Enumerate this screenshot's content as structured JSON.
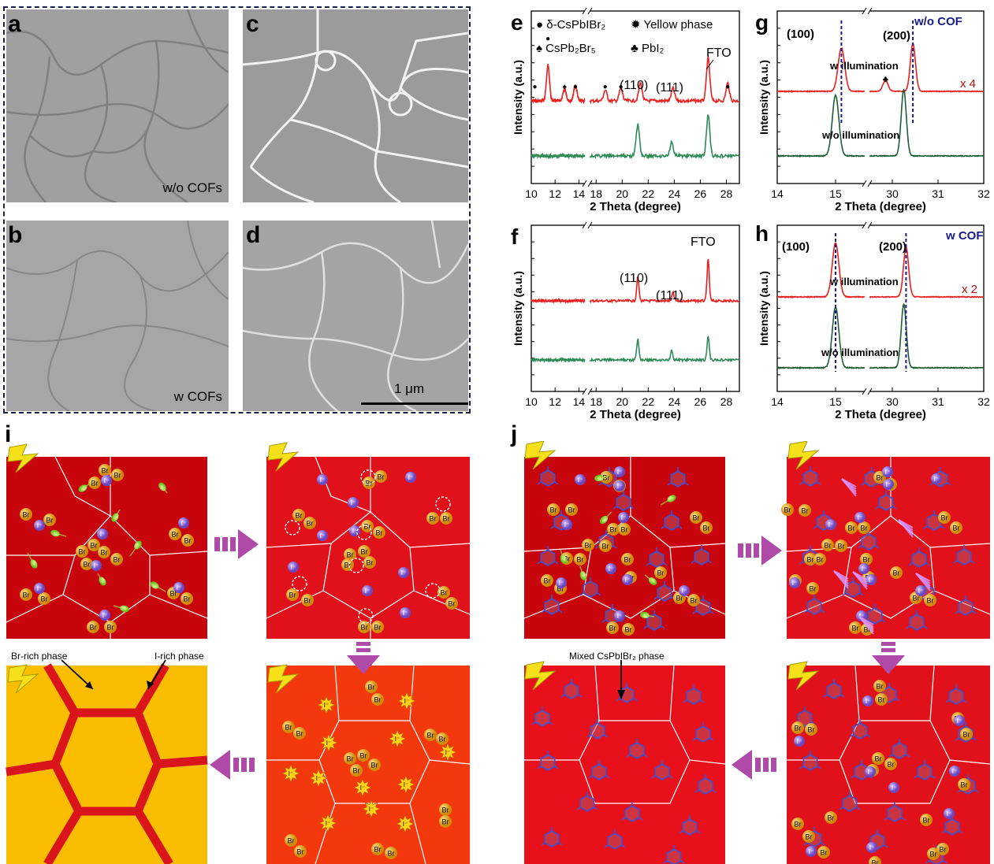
{
  "panels": {
    "a": {
      "letter": "a",
      "label": "w/o COFs"
    },
    "b": {
      "letter": "b",
      "label": "w COFs"
    },
    "c": {
      "letter": "c"
    },
    "d": {
      "letter": "d",
      "scalebar": "1 μm"
    }
  },
  "chart_data": [
    {
      "panel": "e",
      "type": "line",
      "xlabel": "2 Theta (degree)",
      "ylabel": "Intensity (a.u.)",
      "xticks": [
        "10",
        "12",
        "14",
        "18",
        "20",
        "22",
        "24",
        "26",
        "28"
      ],
      "xlim_left": [
        10,
        14.5
      ],
      "xlim_right": [
        17.5,
        29
      ],
      "legend": [
        {
          "symbol": "●",
          "text": "δ-CsPbIBr₂"
        },
        {
          "symbol": "✹",
          "text": "Yellow phase"
        },
        {
          "symbol": "♠",
          "text": "CsPb₂Br₅"
        },
        {
          "symbol": "♣",
          "text": "PbI₂"
        }
      ],
      "annotations": [
        "(110)",
        "(111)",
        "FTO"
      ],
      "series": [
        {
          "color": "#e8201e",
          "peaks": [
            [
              11.4,
              1.0
            ],
            [
              12.8,
              0.35
            ],
            [
              13.7,
              0.45
            ],
            [
              18.7,
              0.3
            ],
            [
              19.9,
              0.35
            ],
            [
              21.4,
              0.5
            ],
            [
              23.9,
              0.35
            ],
            [
              26.6,
              1.2
            ],
            [
              28.1,
              0.5
            ]
          ]
        },
        {
          "color": "#2e8a57",
          "peaks": [
            [
              21.2,
              1.0
            ],
            [
              23.8,
              0.45
            ],
            [
              26.6,
              1.3
            ]
          ]
        }
      ]
    },
    {
      "panel": "f",
      "type": "line",
      "xlabel": "2 Theta (degree)",
      "ylabel": "Intensity (a.u.)",
      "xticks": [
        "10",
        "12",
        "14",
        "18",
        "20",
        "22",
        "24",
        "26",
        "28"
      ],
      "xlim_left": [
        10,
        14.5
      ],
      "xlim_right": [
        17.5,
        29
      ],
      "annotations": [
        "(110)",
        "(111)",
        "FTO"
      ],
      "series": [
        {
          "color": "#e8201e",
          "peaks": [
            [
              21.2,
              0.75
            ],
            [
              23.9,
              0.25
            ],
            [
              26.6,
              1.3
            ]
          ]
        },
        {
          "color": "#2e8a57",
          "peaks": [
            [
              21.2,
              0.75
            ],
            [
              23.8,
              0.35
            ],
            [
              26.6,
              0.85
            ]
          ]
        }
      ]
    },
    {
      "panel": "g",
      "type": "line",
      "xlabel": "2 Theta (degree)",
      "ylabel": "Intensity (a.u.)",
      "xticks": [
        "14",
        "15",
        "30",
        "31",
        "32"
      ],
      "xlim_left": [
        14,
        15.5
      ],
      "xlim_right": [
        29.5,
        32
      ],
      "title": "w/o COF",
      "annotations": [
        "(100)",
        "(200)",
        "w illumination",
        "w/o illumination",
        "x 4"
      ],
      "series": [
        {
          "name": "w illumination",
          "color": "#e8201e",
          "peaks": [
            [
              15.1,
              1.0
            ],
            [
              29.85,
              0.25
            ],
            [
              30.45,
              1.1
            ]
          ]
        },
        {
          "name": "w/o illumination",
          "color": "#1d5e33",
          "peaks": [
            [
              15.0,
              1.1
            ],
            [
              30.25,
              1.2
            ]
          ]
        }
      ]
    },
    {
      "panel": "h",
      "type": "line",
      "xlabel": "2 Theta (degree)",
      "ylabel": "Intensity (a.u.)",
      "xticks": [
        "14",
        "15",
        "30",
        "31",
        "32"
      ],
      "xlim_left": [
        14,
        15.5
      ],
      "xlim_right": [
        29.5,
        32
      ],
      "title": "w COF",
      "annotations": [
        "(100)",
        "(200)",
        "w illumination",
        "w/o illumination",
        "x 2"
      ],
      "series": [
        {
          "name": "w illumination",
          "color": "#e8201e",
          "peaks": [
            [
              15.0,
              1.25
            ],
            [
              30.3,
              1.15
            ]
          ]
        },
        {
          "name": "w/o illumination",
          "color": "#1d5e33",
          "peaks": [
            [
              15.0,
              1.1
            ],
            [
              30.25,
              1.15
            ]
          ]
        }
      ]
    }
  ],
  "scheme_i": {
    "letter": "i",
    "br_rich": "Br-rich phase",
    "i_rich": "I-rich phase",
    "ion_br": "Br",
    "ion_i": "I⁻"
  },
  "scheme_j": {
    "letter": "j",
    "mixed": "Mixed CsPbIBr₂ phase"
  },
  "colors": {
    "red_grain": "#c8040d",
    "red_bright": "#e0111a",
    "orange": "#f2380c",
    "yellow": "#fbbd00",
    "arrow": "#b04aa8",
    "br_ball": "#e6a317",
    "i_ball": "#9b6fd6"
  }
}
